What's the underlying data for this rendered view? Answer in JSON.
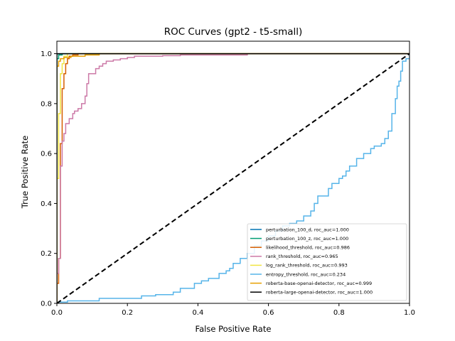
{
  "chart_data": {
    "type": "line",
    "title": "ROC Curves (gpt2 - t5-small)",
    "xlabel": "False Positive Rate",
    "ylabel": "True Positive Rate",
    "xlim": [
      0.0,
      1.0
    ],
    "ylim": [
      0.0,
      1.05
    ],
    "xticks": [
      "0.0",
      "0.2",
      "0.4",
      "0.6",
      "0.8",
      "1.0"
    ],
    "yticks": [
      "0.0",
      "0.2",
      "0.4",
      "0.6",
      "0.8",
      "1.0"
    ],
    "grid": false,
    "legend_position": "lower-right",
    "diagonal": {
      "x": [
        0,
        1
      ],
      "y": [
        0,
        1
      ],
      "color": "#000000",
      "style": "dashed"
    },
    "series": [
      {
        "name": "perturbation_100_d, roc_auc=1.000",
        "color": "#0072b2",
        "x": [
          0,
          0,
          1
        ],
        "y": [
          0,
          1.0,
          1.0
        ]
      },
      {
        "name": "perturbation_100_z, roc_auc=1.000",
        "color": "#009e73",
        "x": [
          0,
          0,
          0.005,
          0.005,
          0.015,
          0.015,
          1
        ],
        "y": [
          0,
          0.98,
          0.98,
          0.995,
          0.995,
          1.0,
          1.0
        ]
      },
      {
        "name": "likelihood_threshold, roc_auc=0.986",
        "color": "#d55e00",
        "x": [
          0,
          0,
          0.005,
          0.005,
          0.01,
          0.01,
          0.015,
          0.015,
          0.02,
          0.02,
          0.025,
          0.025,
          0.03,
          0.03,
          0.035,
          0.035,
          0.045,
          0.045,
          0.06,
          0.06,
          1
        ],
        "y": [
          0,
          0.08,
          0.08,
          0.18,
          0.18,
          0.64,
          0.64,
          0.86,
          0.86,
          0.92,
          0.92,
          0.96,
          0.96,
          0.98,
          0.98,
          0.99,
          0.99,
          0.995,
          0.995,
          1.0,
          1.0
        ]
      },
      {
        "name": "rank_threshold, roc_auc=0.965",
        "color": "#cc79a7",
        "x": [
          0,
          0,
          0.005,
          0.005,
          0.01,
          0.01,
          0.015,
          0.015,
          0.02,
          0.02,
          0.025,
          0.025,
          0.035,
          0.035,
          0.045,
          0.045,
          0.05,
          0.05,
          0.06,
          0.06,
          0.07,
          0.07,
          0.08,
          0.08,
          0.085,
          0.085,
          0.09,
          0.09,
          0.11,
          0.11,
          0.12,
          0.12,
          0.13,
          0.13,
          0.14,
          0.14,
          0.16,
          0.16,
          0.18,
          0.18,
          0.2,
          0.2,
          0.22,
          0.22,
          0.3,
          0.3,
          0.35,
          0.35,
          0.54,
          0.54,
          1
        ],
        "y": [
          0,
          0.12,
          0.12,
          0.18,
          0.18,
          0.55,
          0.55,
          0.65,
          0.65,
          0.68,
          0.68,
          0.72,
          0.72,
          0.74,
          0.74,
          0.76,
          0.76,
          0.77,
          0.77,
          0.78,
          0.78,
          0.8,
          0.8,
          0.83,
          0.83,
          0.88,
          0.88,
          0.92,
          0.92,
          0.94,
          0.94,
          0.95,
          0.95,
          0.96,
          0.96,
          0.97,
          0.97,
          0.975,
          0.975,
          0.98,
          0.98,
          0.985,
          0.985,
          0.99,
          0.99,
          0.992,
          0.992,
          0.995,
          0.995,
          1.0,
          1.0
        ]
      },
      {
        "name": "log_rank_threshold, roc_auc=0.993",
        "color": "#f0e442",
        "x": [
          0,
          0,
          0.005,
          0.005,
          0.01,
          0.01,
          0.015,
          0.015,
          0.02,
          0.02,
          0.03,
          0.03,
          1
        ],
        "y": [
          0,
          0.5,
          0.5,
          0.76,
          0.76,
          0.92,
          0.92,
          0.96,
          0.96,
          0.99,
          0.99,
          1.0,
          1.0
        ]
      },
      {
        "name": "entropy_threshold, roc_auc=0.234",
        "color": "#56b4e9",
        "x": [
          0,
          0,
          0.03,
          0.03,
          0.12,
          0.12,
          0.24,
          0.24,
          0.28,
          0.28,
          0.33,
          0.33,
          0.35,
          0.35,
          0.39,
          0.39,
          0.41,
          0.41,
          0.43,
          0.43,
          0.46,
          0.46,
          0.48,
          0.48,
          0.49,
          0.49,
          0.5,
          0.5,
          0.52,
          0.52,
          0.54,
          0.54,
          0.56,
          0.56,
          0.58,
          0.58,
          0.6,
          0.6,
          0.62,
          0.62,
          0.64,
          0.64,
          0.66,
          0.66,
          0.68,
          0.68,
          0.7,
          0.7,
          0.72,
          0.72,
          0.73,
          0.73,
          0.74,
          0.74,
          0.77,
          0.77,
          0.78,
          0.78,
          0.8,
          0.8,
          0.81,
          0.81,
          0.82,
          0.82,
          0.83,
          0.83,
          0.85,
          0.85,
          0.87,
          0.87,
          0.89,
          0.89,
          0.9,
          0.9,
          0.92,
          0.92,
          0.93,
          0.93,
          0.94,
          0.94,
          0.95,
          0.95,
          0.96,
          0.96,
          0.965,
          0.965,
          0.97,
          0.97,
          0.975,
          0.975,
          0.98,
          0.98,
          0.99,
          0.99,
          1.0,
          1.0
        ],
        "y": [
          0,
          0.005,
          0.005,
          0.01,
          0.01,
          0.02,
          0.02,
          0.03,
          0.03,
          0.035,
          0.035,
          0.045,
          0.045,
          0.06,
          0.06,
          0.08,
          0.08,
          0.09,
          0.09,
          0.1,
          0.1,
          0.12,
          0.12,
          0.13,
          0.13,
          0.14,
          0.14,
          0.16,
          0.16,
          0.18,
          0.18,
          0.2,
          0.2,
          0.23,
          0.23,
          0.25,
          0.25,
          0.27,
          0.27,
          0.29,
          0.29,
          0.31,
          0.31,
          0.32,
          0.32,
          0.33,
          0.33,
          0.35,
          0.35,
          0.37,
          0.37,
          0.4,
          0.4,
          0.43,
          0.43,
          0.46,
          0.46,
          0.48,
          0.48,
          0.5,
          0.5,
          0.51,
          0.51,
          0.53,
          0.53,
          0.55,
          0.55,
          0.58,
          0.58,
          0.6,
          0.6,
          0.62,
          0.62,
          0.63,
          0.63,
          0.64,
          0.64,
          0.66,
          0.66,
          0.69,
          0.69,
          0.76,
          0.76,
          0.82,
          0.82,
          0.87,
          0.87,
          0.89,
          0.89,
          0.93,
          0.93,
          0.97,
          0.97,
          0.98,
          0.98,
          1.0
        ]
      },
      {
        "name": "roberta-base-openai-detector, roc_auc=0.999",
        "color": "#e69f00",
        "x": [
          0,
          0,
          0.005,
          0.005,
          0.01,
          0.01,
          0.02,
          0.02,
          0.04,
          0.04,
          0.08,
          0.08,
          0.12,
          0.12,
          1
        ],
        "y": [
          0,
          0.95,
          0.95,
          0.97,
          0.97,
          0.98,
          0.98,
          0.985,
          0.985,
          0.99,
          0.99,
          0.995,
          0.995,
          1.0,
          1.0
        ]
      },
      {
        "name": "roberta-large-openai-detector, roc_auc=1.000",
        "color": "#000000",
        "x": [
          0,
          0,
          1
        ],
        "y": [
          0,
          1.0,
          1.0
        ]
      }
    ]
  }
}
